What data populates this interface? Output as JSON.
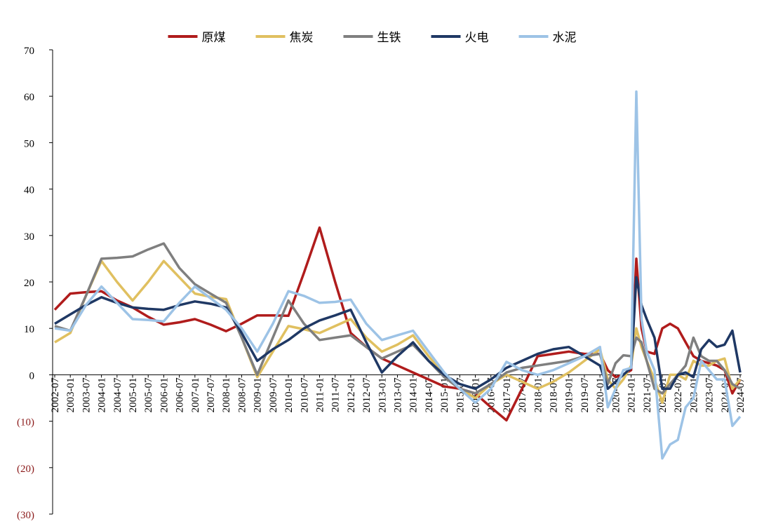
{
  "chart_data": {
    "type": "line",
    "x": [
      "2002-07",
      "2003-01",
      "2003-07",
      "2004-01",
      "2004-07",
      "2005-01",
      "2005-07",
      "2006-01",
      "2006-07",
      "2007-01",
      "2007-07",
      "2008-01",
      "2008-07",
      "2009-01",
      "2009-07",
      "2010-01",
      "2010-07",
      "2011-01",
      "2011-07",
      "2012-01",
      "2012-07",
      "2013-01",
      "2013-07",
      "2014-01",
      "2014-07",
      "2015-01",
      "2015-07",
      "2016-01",
      "2016-07",
      "2017-01",
      "2017-07",
      "2018-01",
      "2018-07",
      "2019-01",
      "2019-07",
      "2020-01",
      "2020-04",
      "2020-07",
      "2020-10",
      "2021-01",
      "2021-03",
      "2021-05",
      "2021-07",
      "2021-10",
      "2022-01",
      "2022-04",
      "2022-07",
      "2022-10",
      "2023-01",
      "2023-04",
      "2023-07",
      "2023-10",
      "2024-01",
      "2024-04",
      "2024-07"
    ],
    "xlim": [
      "2002-07",
      "2024-07"
    ],
    "xticks": [
      "2002-07",
      "2003-01",
      "2003-07",
      "2004-01",
      "2004-07",
      "2005-01",
      "2005-07",
      "2006-01",
      "2006-07",
      "2007-01",
      "2007-07",
      "2008-01",
      "2008-07",
      "2009-01",
      "2009-07",
      "2010-01",
      "2010-07",
      "2011-01",
      "2011-07",
      "2012-01",
      "2012-07",
      "2013-01",
      "2013-07",
      "2014-01",
      "2014-07",
      "2015-01",
      "2015-07",
      "2016-01",
      "2016-07",
      "2017-01",
      "2017-07",
      "2018-01",
      "2018-07",
      "2019-01",
      "2019-07",
      "2020-01",
      "2020-07",
      "2021-01",
      "2021-07",
      "2022-01",
      "2022-07",
      "2023-01",
      "2023-07",
      "2024-01",
      "2024-07"
    ],
    "ylim": [
      -30,
      70
    ],
    "yticks": [
      {
        "value": -30,
        "label": "(30)"
      },
      {
        "value": -20,
        "label": "(20)"
      },
      {
        "value": -10,
        "label": "(10)"
      },
      0,
      10,
      20,
      30,
      40,
      50,
      60,
      70
    ],
    "negative_tick_label_color": "#8b1a1a",
    "legend": "top",
    "series": [
      {
        "name": "原煤",
        "color": "#b01c1c",
        "values": [
          14,
          17.5,
          17.8,
          18,
          16,
          14.5,
          12.5,
          10.8,
          11.3,
          12,
          10.8,
          9.4,
          11,
          12.8,
          12.8,
          12.7,
          22,
          31.7,
          20,
          9,
          6,
          3.5,
          2,
          0.5,
          -1,
          -2.5,
          -3,
          -4,
          -7,
          -9.8,
          -3,
          4,
          4.5,
          5,
          4.5,
          4.5,
          1,
          -0.5,
          0,
          1,
          25,
          10,
          5,
          4.5,
          10,
          11,
          10,
          7,
          4,
          3,
          2.5,
          2,
          1,
          -4,
          -1
        ]
      },
      {
        "name": "焦炭",
        "color": "#e0c060",
        "values": [
          7,
          9,
          17,
          24.5,
          20,
          16,
          20,
          24.5,
          21,
          17.5,
          16.8,
          16.3,
          8,
          -0.5,
          5,
          10.5,
          9.8,
          9,
          10.5,
          12,
          8,
          5,
          6.5,
          8.5,
          4,
          0,
          -3,
          -5,
          -2,
          0,
          -1.5,
          -3,
          -1.5,
          0.5,
          3,
          5.5,
          -1,
          -3,
          -1,
          2,
          10,
          6,
          3,
          -1,
          -6,
          0,
          0,
          -1,
          3,
          2,
          2,
          3,
          3.5,
          -3,
          -1
        ]
      },
      {
        "name": "生铁",
        "color": "#7f7f7f",
        "values": [
          10.5,
          9.5,
          17,
          25,
          25.2,
          25.5,
          27,
          28.3,
          23,
          19.5,
          17.5,
          15.5,
          8,
          0,
          8,
          16,
          11,
          7.5,
          8,
          8.5,
          6,
          3.5,
          5,
          6.5,
          3,
          -0.5,
          -3,
          -4,
          -2,
          0.5,
          1.5,
          2,
          2.5,
          3,
          4,
          4.5,
          -2,
          2.5,
          4.2,
          4,
          8,
          7,
          3,
          -3,
          -4,
          -2,
          0,
          2,
          8,
          4,
          3,
          3,
          1,
          -2,
          -3
        ]
      },
      {
        "name": "火电",
        "color": "#1f3864",
        "values": [
          11,
          13,
          15,
          16.7,
          15.5,
          14.5,
          14.2,
          14,
          15,
          15.8,
          15.3,
          14.5,
          9,
          3,
          5.5,
          7.5,
          10,
          11.7,
          12.8,
          14,
          7,
          0.5,
          4,
          7,
          3,
          0,
          -2,
          -3,
          -1,
          1.5,
          3,
          4.5,
          5.5,
          6,
          4,
          2,
          -3,
          -1.5,
          0,
          1.5,
          21,
          15,
          12,
          8,
          -3,
          -3,
          0,
          0.5,
          -0.5,
          5.5,
          7.5,
          6,
          6.5,
          9.5,
          0.5
        ]
      },
      {
        "name": "水泥",
        "color": "#9dc3e6",
        "values": [
          10,
          9.5,
          15,
          19,
          15.5,
          12,
          11.8,
          11.5,
          15.5,
          19,
          16.5,
          14,
          10,
          5,
          11,
          18,
          17,
          15.5,
          15.7,
          16.2,
          11,
          7.5,
          8.5,
          9.5,
          5,
          0.5,
          -3,
          -6,
          -3,
          2.8,
          1,
          0,
          1,
          2.5,
          4,
          6,
          -7,
          -3,
          1,
          1.5,
          61,
          12,
          5,
          1,
          -18,
          -15,
          -14,
          -7,
          -5,
          3,
          1,
          -1,
          -1,
          -11,
          -9
        ]
      }
    ]
  }
}
